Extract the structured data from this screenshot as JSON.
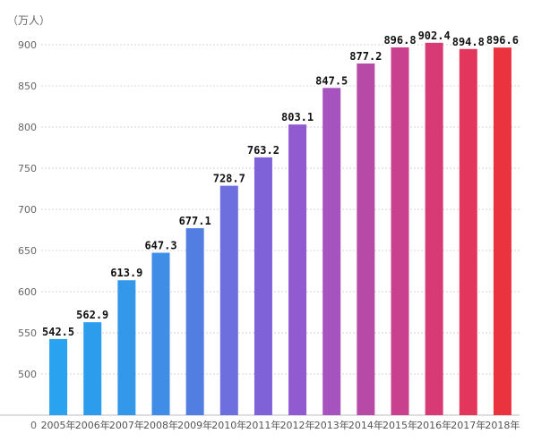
{
  "chart_data": {
    "type": "bar",
    "unit_label": "（万人）",
    "categories": [
      "2005年",
      "2006年",
      "2007年",
      "2008年",
      "2009年",
      "2010年",
      "2011年",
      "2012年",
      "2013年",
      "2014年",
      "2015年",
      "2016年",
      "2017年",
      "2018年"
    ],
    "values": [
      542.5,
      562.9,
      613.9,
      647.3,
      677.1,
      728.7,
      763.2,
      803.1,
      847.5,
      877.2,
      896.8,
      902.4,
      894.8,
      896.6
    ],
    "value_labels": [
      "542.5",
      "562.9",
      "613.9",
      "647.3",
      "677.1",
      "728.7",
      "763.2",
      "803.1",
      "847.5",
      "877.2",
      "896.8",
      "902.4",
      "894.8",
      "896.6"
    ],
    "yticks": [
      0,
      500,
      550,
      600,
      650,
      700,
      750,
      800,
      850,
      900
    ],
    "ytick_labels": [
      "0",
      "500",
      "550",
      "600",
      "650",
      "700",
      "750",
      "800",
      "850",
      "900"
    ],
    "ylim": [
      450,
      930
    ],
    "axis_break": true,
    "grid": true,
    "colors": [
      "#29a3ef",
      "#2c9ded",
      "#3398ea",
      "#3f8de6",
      "#527ee2",
      "#6c6fdd",
      "#8062d8",
      "#925ad1",
      "#a652bf",
      "#b84aa7",
      "#c9418e",
      "#d73a75",
      "#e2365d",
      "#eb3340"
    ]
  }
}
